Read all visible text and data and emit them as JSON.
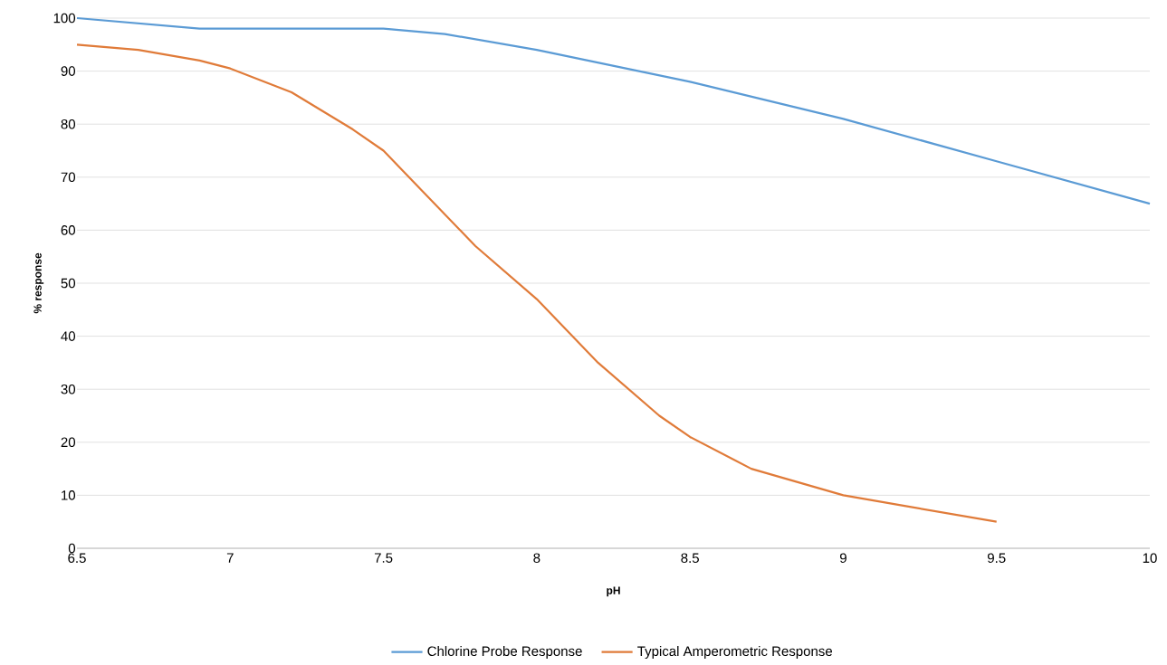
{
  "chart_data": {
    "type": "line",
    "xlabel": "pH",
    "ylabel": "% response",
    "xlim": [
      6.5,
      10
    ],
    "xticks": [
      6.5,
      7,
      7.5,
      8,
      8.5,
      9,
      9.5,
      10
    ],
    "ylim": [
      0,
      100
    ],
    "yticks": [
      0,
      10,
      20,
      30,
      40,
      50,
      60,
      70,
      80,
      90,
      100
    ],
    "grid": "y",
    "legend": "bottom",
    "marker": "none",
    "line_style": "solid",
    "series": [
      {
        "name": "Chlorine Probe Response",
        "color": "#5b9bd5",
        "x": [
          6.5,
          6.7,
          6.9,
          7.2,
          7.5,
          7.7,
          8,
          8.5,
          9,
          9.5,
          10
        ],
        "values": [
          100,
          99,
          98,
          98,
          98,
          97,
          94,
          88,
          81,
          73,
          65
        ]
      },
      {
        "name": "Typical Amperometric Response",
        "color": "#e07b39",
        "x": [
          6.5,
          6.7,
          6.9,
          7,
          7.2,
          7.4,
          7.5,
          7.6,
          7.8,
          8,
          8.2,
          8.4,
          8.5,
          8.7,
          9,
          9.2,
          9.5
        ],
        "values": [
          95,
          94,
          92,
          90.5,
          86,
          79,
          75,
          69,
          57,
          47,
          35,
          25,
          21,
          15,
          10,
          8,
          5
        ]
      }
    ]
  }
}
